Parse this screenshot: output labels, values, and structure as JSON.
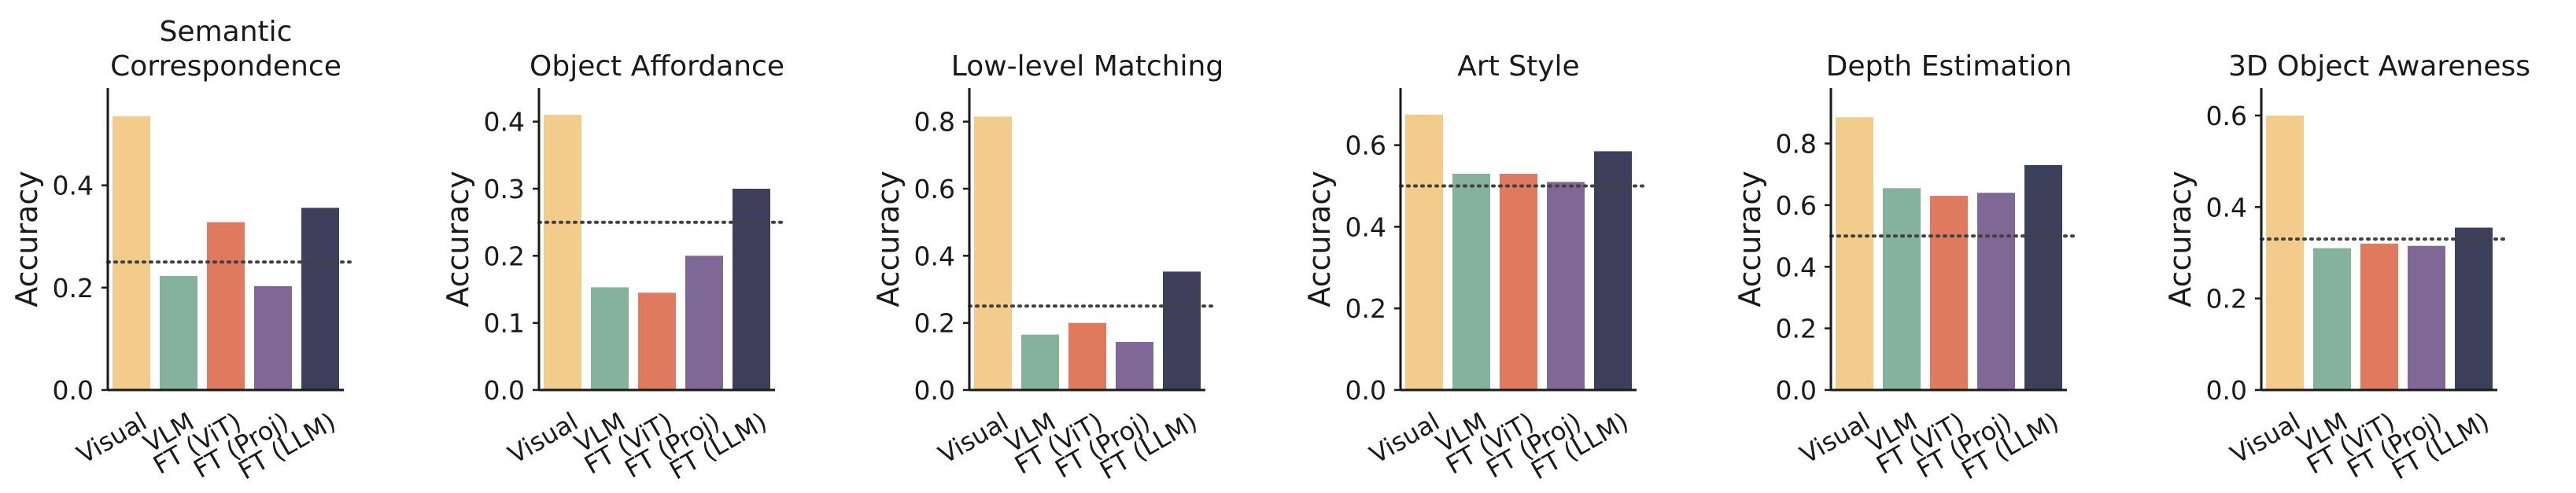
{
  "chart_data": [
    {
      "type": "bar",
      "title_lines": [
        "Semantic",
        "Correspondence"
      ],
      "ylabel": "Accuracy",
      "categories": [
        "Visual",
        "VLM",
        "FT (ViT)",
        "FT (Proj)",
        "FT (LLM)"
      ],
      "values": [
        0.535,
        0.223,
        0.328,
        0.203,
        0.356
      ],
      "baseline": 0.25,
      "ylim": [
        0,
        0.59
      ],
      "yticks": [
        0.0,
        0.2,
        0.4
      ],
      "ytick_labels": [
        "0.0",
        "0.2",
        "0.4"
      ]
    },
    {
      "type": "bar",
      "title_lines": [
        "Object Affordance"
      ],
      "ylabel": "Accuracy",
      "categories": [
        "Visual",
        "VLM",
        "FT (ViT)",
        "FT (Proj)",
        "FT (LLM)"
      ],
      "values": [
        0.41,
        0.153,
        0.145,
        0.2,
        0.3
      ],
      "baseline": 0.25,
      "ylim": [
        0,
        0.45
      ],
      "yticks": [
        0.0,
        0.1,
        0.2,
        0.3,
        0.4
      ],
      "ytick_labels": [
        "0.0",
        "0.1",
        "0.2",
        "0.3",
        "0.4"
      ]
    },
    {
      "type": "bar",
      "title_lines": [
        "Low-level Matching"
      ],
      "ylabel": "Accuracy",
      "categories": [
        "Visual",
        "VLM",
        "FT (ViT)",
        "FT (Proj)",
        "FT (LLM)"
      ],
      "values": [
        0.815,
        0.165,
        0.2,
        0.143,
        0.353
      ],
      "baseline": 0.25,
      "ylim": [
        0,
        0.9
      ],
      "yticks": [
        0.0,
        0.2,
        0.4,
        0.6,
        0.8
      ],
      "ytick_labels": [
        "0.0",
        "0.2",
        "0.4",
        "0.6",
        "0.8"
      ]
    },
    {
      "type": "bar",
      "title_lines": [
        "Art Style"
      ],
      "ylabel": "Accuracy",
      "categories": [
        "Visual",
        "VLM",
        "FT (ViT)",
        "FT (Proj)",
        "FT (LLM)"
      ],
      "values": [
        0.675,
        0.53,
        0.53,
        0.51,
        0.585
      ],
      "baseline": 0.5,
      "ylim": [
        0,
        0.74
      ],
      "yticks": [
        0.0,
        0.2,
        0.4,
        0.6
      ],
      "ytick_labels": [
        "0.0",
        "0.2",
        "0.4",
        "0.6"
      ]
    },
    {
      "type": "bar",
      "title_lines": [
        "Depth Estimation"
      ],
      "ylabel": "Accuracy",
      "categories": [
        "Visual",
        "VLM",
        "FT (ViT)",
        "FT (Proj)",
        "FT (LLM)"
      ],
      "values": [
        0.885,
        0.655,
        0.63,
        0.64,
        0.73
      ],
      "baseline": 0.5,
      "ylim": [
        0,
        0.98
      ],
      "yticks": [
        0.0,
        0.2,
        0.4,
        0.6,
        0.8
      ],
      "ytick_labels": [
        "0.0",
        "0.2",
        "0.4",
        "0.6",
        "0.8"
      ]
    },
    {
      "type": "bar",
      "title_lines": [
        "3D Object Awareness"
      ],
      "ylabel": "Accuracy",
      "categories": [
        "Visual",
        "VLM",
        "FT (ViT)",
        "FT (Proj)",
        "FT (LLM)"
      ],
      "values": [
        0.6,
        0.31,
        0.32,
        0.315,
        0.355
      ],
      "baseline": 0.33,
      "ylim": [
        0,
        0.66
      ],
      "yticks": [
        0.0,
        0.2,
        0.4,
        0.6
      ],
      "ytick_labels": [
        "0.0",
        "0.2",
        "0.4",
        "0.6"
      ]
    }
  ],
  "colors": {
    "Visual": "#f2cc8a",
    "VLM": "#84b29b",
    "FT (ViT)": "#e07a5f",
    "FT (Proj)": "#806896",
    "FT (LLM)": "#3d405b",
    "axis": "#1a1a1a",
    "baseline": "#404040"
  }
}
